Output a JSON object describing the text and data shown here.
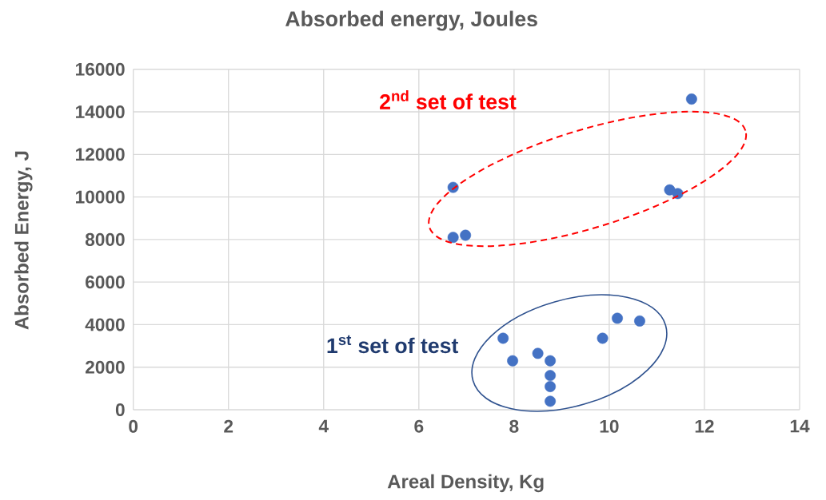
{
  "chart_data": {
    "type": "scatter",
    "title": "Absorbed energy, Joules",
    "xlabel": "Areal Density, Kg",
    "ylabel": "Absorbed Energy, J",
    "annotations": [
      "2$^{nd}$ set of test",
      "1$^{st}$ set of test"
    ],
    "x": [
      11.73,
      6.72,
      6.72,
      6.98,
      11.27,
      11.44,
      7.77,
      7.97,
      8.5,
      8.76,
      8.76,
      8.76,
      8.76,
      9.86,
      10.17,
      10.64
    ],
    "values": [
      14600,
      10450,
      8100,
      8200,
      10330,
      10160,
      3360,
      2300,
      2650,
      2300,
      1610,
      1090,
      400,
      3360,
      4300,
      4170
    ],
    "color": "#4472c4",
    "marker": "circle",
    "grid": true,
    "xlim": [
      0,
      14
    ],
    "ylim": [
      0,
      16000
    ],
    "xticks": [
      0,
      2,
      4,
      6,
      8,
      10,
      12,
      14
    ],
    "yticks": [
      0,
      2000,
      4000,
      6000,
      8000,
      10000,
      12000,
      14000,
      16000
    ]
  }
}
